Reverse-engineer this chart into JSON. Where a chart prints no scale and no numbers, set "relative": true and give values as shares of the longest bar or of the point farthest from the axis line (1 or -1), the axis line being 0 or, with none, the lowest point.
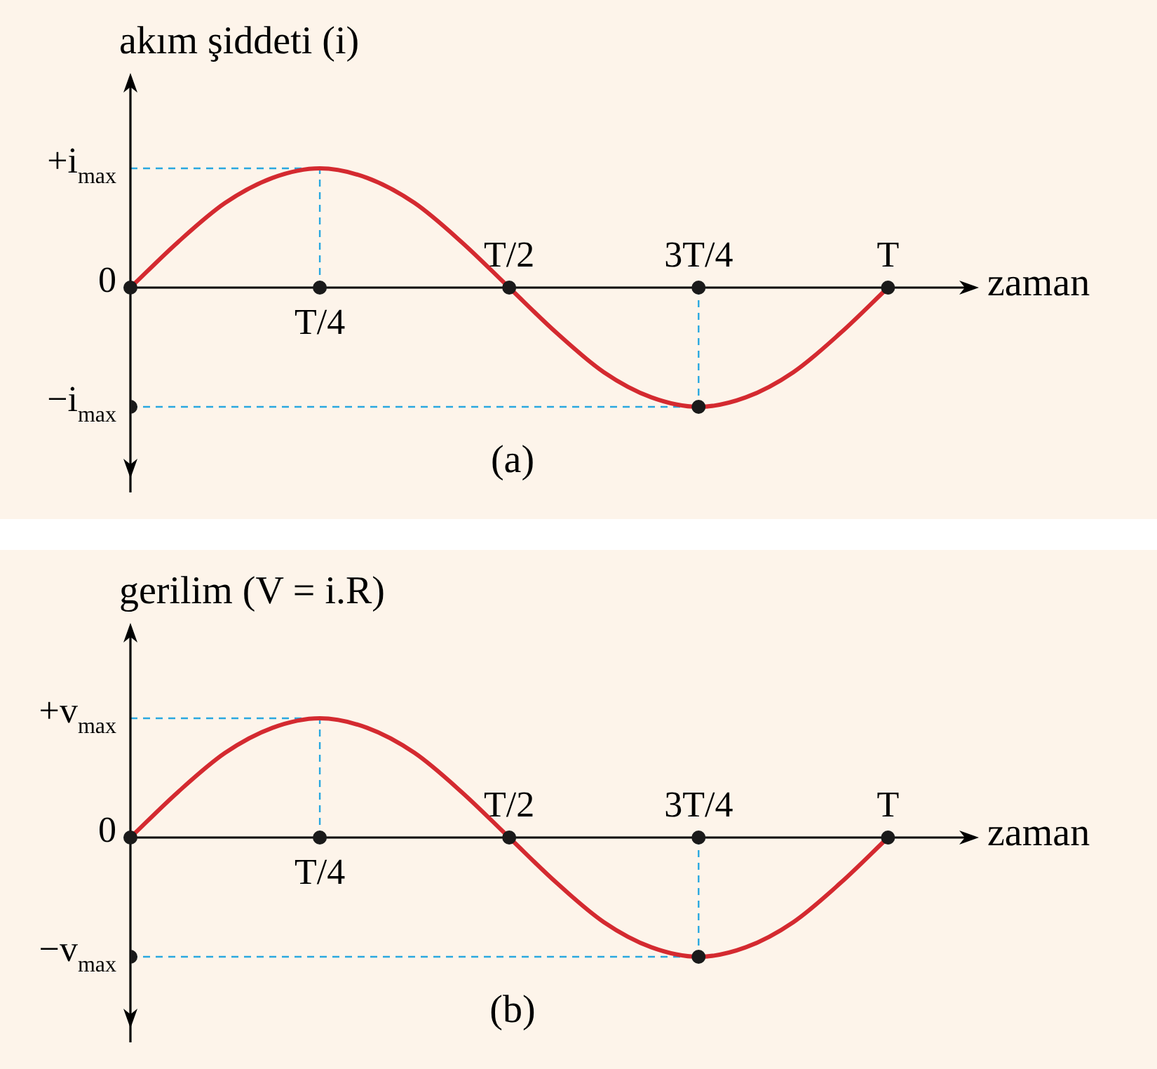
{
  "chart_data": [
    {
      "type": "line",
      "relative": true,
      "ylabel": "akım şiddeti (i)",
      "xlabel": "zaman",
      "annotations": [
        "(a)"
      ],
      "categories": [
        "0",
        null,
        null,
        null,
        "T/4",
        null,
        null,
        null,
        "T/2",
        null,
        null,
        null,
        "3T/4",
        null,
        null,
        null,
        "T"
      ],
      "series": [
        {
          "color": "#d42a30",
          "values": [
            0,
            0.38,
            0.71,
            0.92,
            1,
            0.92,
            0.71,
            0.38,
            0,
            -0.38,
            -0.71,
            -0.92,
            -1,
            -0.92,
            -0.71,
            -0.38,
            0
          ]
        },
        {
          "type": "scatter",
          "marker": "circle",
          "color": "#1a1a1a",
          "x": [
            "0",
            "T/4",
            "T/2",
            "3T/4",
            "T"
          ],
          "values": [
            -1,
            0,
            0,
            0,
            0
          ]
        }
      ],
      "ref_lines": [
        {
          "axis": "x",
          "value": "T/4",
          "color": "#29a8e0",
          "line_style": "dashed"
        },
        {
          "axis": "x",
          "value": "3T/4",
          "color": "#29a8e0",
          "line_style": "dashed"
        },
        {
          "axis": "y",
          "value": 1,
          "label": "+i$_{max}$",
          "color": "#29a8e0",
          "line_style": "dashed"
        },
        {
          "axis": "y",
          "value": -1,
          "label": "−i$_{max}$",
          "color": "#29a8e0",
          "line_style": "dashed"
        }
      ],
      "marker": "none",
      "line_style": "solid"
    },
    {
      "type": "line",
      "relative": true,
      "ylabel": "gerilim (V = i.R)",
      "xlabel": "zaman",
      "annotations": [
        "(b)"
      ],
      "categories": [
        "0",
        null,
        null,
        null,
        "T/4",
        null,
        null,
        null,
        "T/2",
        null,
        null,
        null,
        "3T/4",
        null,
        null,
        null,
        "T"
      ],
      "series": [
        {
          "color": "#d42a30",
          "values": [
            0,
            0.38,
            0.71,
            0.92,
            1,
            0.92,
            0.71,
            0.38,
            0,
            -0.38,
            -0.71,
            -0.92,
            -1,
            -0.92,
            -0.71,
            -0.38,
            0
          ]
        },
        {
          "type": "scatter",
          "marker": "circle",
          "color": "#1a1a1a",
          "x": [
            "0",
            "T/4",
            "T/2",
            "3T/4",
            "T"
          ],
          "values": [
            -1,
            0,
            0,
            0,
            0
          ]
        }
      ],
      "ref_lines": [
        {
          "axis": "x",
          "value": "T/4",
          "color": "#29a8e0",
          "line_style": "dashed"
        },
        {
          "axis": "x",
          "value": "3T/4",
          "color": "#29a8e0",
          "line_style": "dashed"
        },
        {
          "axis": "y",
          "value": 1,
          "label": "+v$_{max}$",
          "color": "#29a8e0",
          "line_style": "dashed"
        },
        {
          "axis": "y",
          "value": -1,
          "label": "−v$_{max}$",
          "color": "#29a8e0",
          "line_style": "dashed"
        }
      ],
      "marker": "none",
      "line_style": "solid"
    }
  ]
}
